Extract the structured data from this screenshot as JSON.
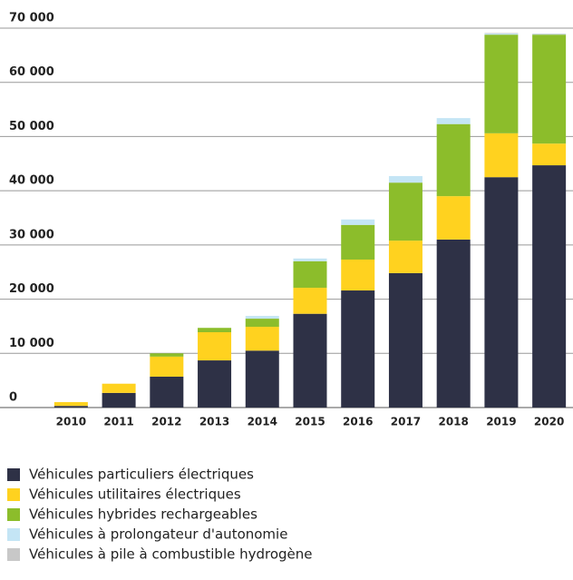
{
  "chart_data": {
    "type": "bar",
    "stacked": true,
    "categories": [
      "2010",
      "2011",
      "2012",
      "2013",
      "2014",
      "2015",
      "2016",
      "2017",
      "2018",
      "2019",
      "2020"
    ],
    "series": [
      {
        "name": "Véhicules particuliers électriques",
        "color": "#2e3146",
        "values": [
          300,
          2700,
          5700,
          8700,
          10500,
          17300,
          21600,
          24800,
          31000,
          42500,
          44700
        ]
      },
      {
        "name": "Véhicules utilitaires électriques",
        "color": "#ffd21f",
        "values": [
          700,
          1700,
          3700,
          5200,
          4400,
          4800,
          5700,
          6000,
          8000,
          8100,
          4000
        ]
      },
      {
        "name": "Véhicules hybrides rechargeables",
        "color": "#8cbd2b",
        "values": [
          0,
          0,
          600,
          800,
          1500,
          4900,
          6400,
          10700,
          13300,
          18200,
          20100
        ]
      },
      {
        "name": "Véhicules à prolongateur d'autonomie",
        "color": "#c4e5f5",
        "values": [
          0,
          0,
          0,
          0,
          500,
          500,
          1000,
          1200,
          1100,
          200,
          100
        ]
      },
      {
        "name": "Véhicules à pile à combustible hydrogène",
        "color": "#c8c8c8",
        "values": [
          0,
          0,
          0,
          0,
          0,
          0,
          0,
          0,
          0,
          100,
          100
        ]
      }
    ],
    "ylim": [
      0,
      70000
    ],
    "yticks": [
      0,
      {
        "value": 10000,
        "label": "10 000"
      },
      {
        "value": 20000,
        "label": "20 000"
      },
      {
        "value": 30000,
        "label": "30 000"
      },
      {
        "value": 40000,
        "label": "40 000"
      },
      {
        "value": 50000,
        "label": "50 000"
      },
      {
        "value": 60000,
        "label": "60 000"
      },
      {
        "value": 70000,
        "label": "70 000"
      }
    ],
    "grid": true,
    "legend": "bottom"
  }
}
